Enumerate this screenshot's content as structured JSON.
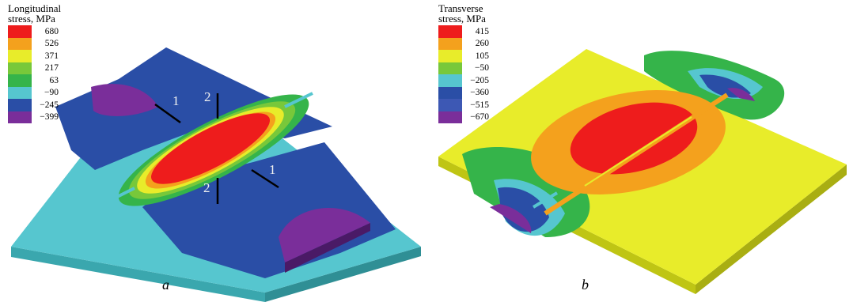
{
  "panels": [
    {
      "caption": "a",
      "legend_title": "Longitudinal\nstress, MPa",
      "legend": [
        {
          "value": "680",
          "color": "#ee1c1c"
        },
        {
          "value": "526",
          "color": "#f4a11d"
        },
        {
          "value": "371",
          "color": "#e8ec2a"
        },
        {
          "value": "217",
          "color": "#78c83a"
        },
        {
          "value": "63",
          "color": "#35b44a"
        },
        {
          "value": "−90",
          "color": "#56c6cf"
        },
        {
          "value": "−245",
          "color": "#2a4ea6"
        },
        {
          "value": "−399",
          "color": "#7a2e9a"
        }
      ],
      "markers": [
        "1",
        "2",
        "2",
        "1"
      ]
    },
    {
      "caption": "b",
      "legend_title": "Transverse\nstress, MPa",
      "legend": [
        {
          "value": "415",
          "color": "#ee1c1c"
        },
        {
          "value": "260",
          "color": "#f4a11d"
        },
        {
          "value": "105",
          "color": "#e8ec2a"
        },
        {
          "value": "−50",
          "color": "#78c83a"
        },
        {
          "value": "−205",
          "color": "#56c6cf"
        },
        {
          "value": "−360",
          "color": "#2a4ea6"
        },
        {
          "value": "−515",
          "color": "#3d58b4"
        },
        {
          "value": "−670",
          "color": "#7a2e9a"
        }
      ]
    }
  ]
}
